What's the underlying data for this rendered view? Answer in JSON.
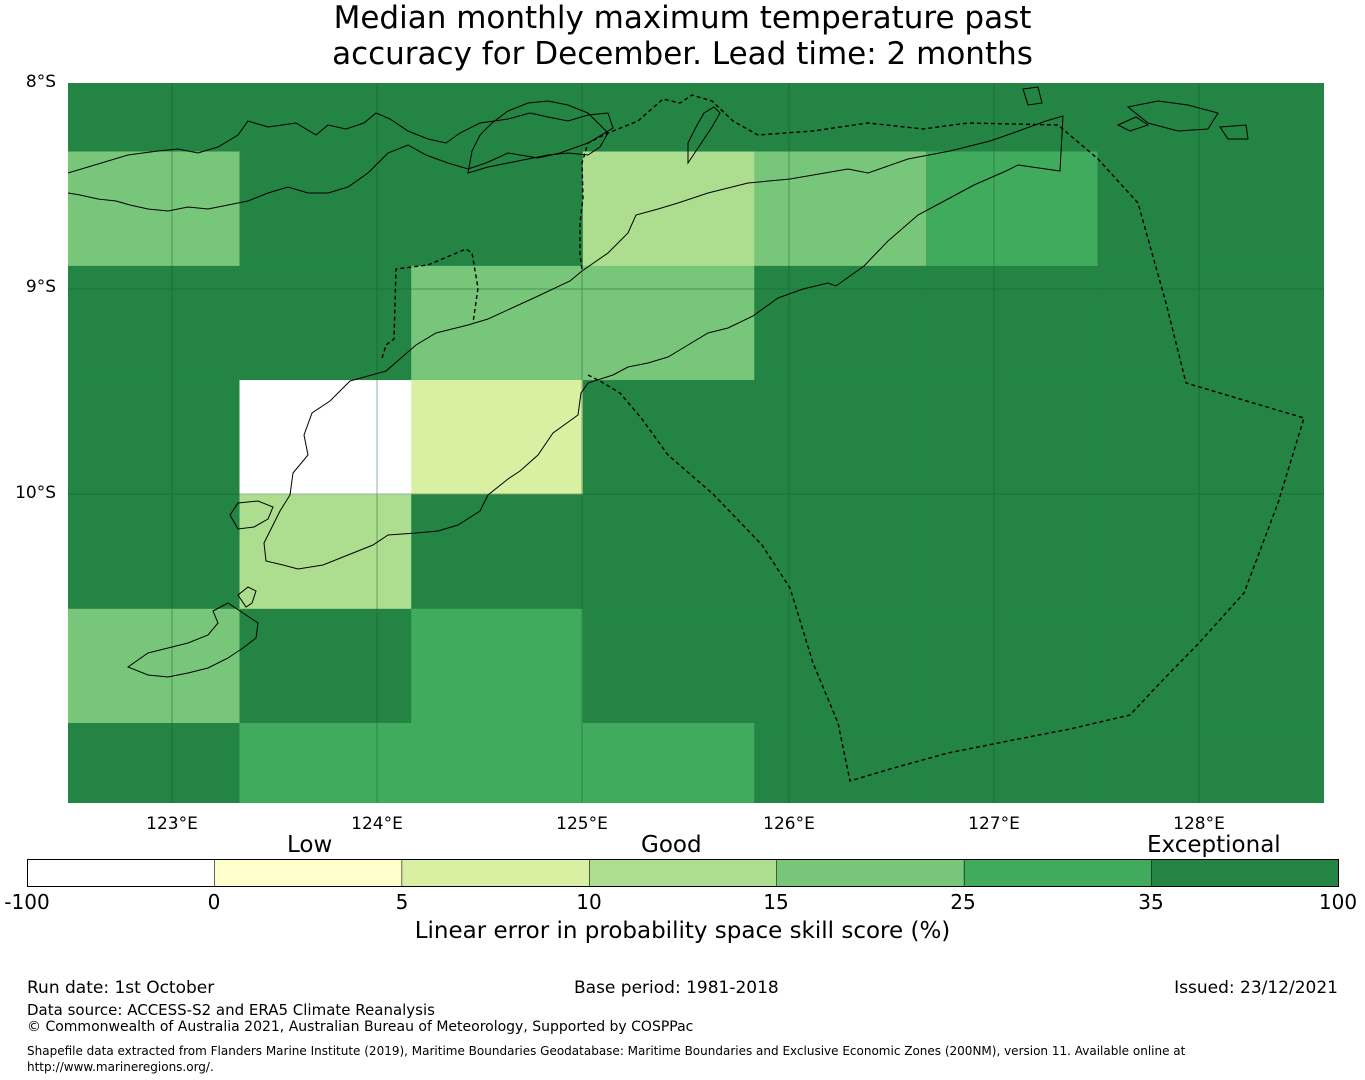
{
  "title": {
    "line1": "Median monthly maximum temperature past",
    "line2": "accuracy for December. Lead time: 2 months"
  },
  "map": {
    "lat_labels": [
      "8°S",
      "9°S",
      "10°S"
    ],
    "lon_labels": [
      "123°E",
      "124°E",
      "125°E",
      "126°E",
      "127°E",
      "128°E"
    ],
    "grid": {
      "lat_edges": [
        -8.0,
        -8.333,
        -8.889,
        -9.444,
        -10.0,
        -10.556,
        -11.111,
        -11.5
      ],
      "lon_edges": [
        122.5,
        123.333,
        124.167,
        125.0,
        125.833,
        126.667,
        127.5,
        128.6
      ],
      "levels": [
        [
          6,
          6,
          6,
          6,
          6,
          6,
          6
        ],
        [
          4,
          6,
          6,
          3,
          4,
          5,
          6
        ],
        [
          6,
          6,
          4,
          4,
          6,
          6,
          6
        ],
        [
          6,
          0,
          2,
          6,
          6,
          6,
          6
        ],
        [
          6,
          3,
          6,
          6,
          6,
          6,
          6
        ],
        [
          4,
          6,
          5,
          6,
          6,
          6,
          6
        ],
        [
          6,
          5,
          5,
          5,
          6,
          6,
          6
        ]
      ]
    }
  },
  "colorbar": {
    "categories": [
      "Low",
      "Good",
      "Exceptional"
    ],
    "ticks": [
      "-100",
      "0",
      "5",
      "10",
      "15",
      "25",
      "35",
      "100"
    ],
    "colors": [
      "#ffffff",
      "#ffffcc",
      "#d9f0a3",
      "#addd8e",
      "#78c679",
      "#41ab5d",
      "#238443"
    ],
    "label": "Linear error in probability space skill score (%)"
  },
  "footer": {
    "run_date": "Run date: 1st October",
    "base_period": "Base period: 1981-2018",
    "issued": "Issued: 23/12/2021",
    "data_source": "Data source: ACCESS-S2 and ERA5 Climate Reanalysis",
    "copyright": "© Commonwealth of Australia 2021, Australian Bureau of Meteorology, Supported by COSPPac",
    "shapefile": "Shapefile data extracted from Flanders Marine Institute (2019), Maritime Boundaries Geodatabase: Maritime Boundaries and Exclusive Economic Zones (200NM), version 11. Available online at http://www.marineregions.org/."
  }
}
